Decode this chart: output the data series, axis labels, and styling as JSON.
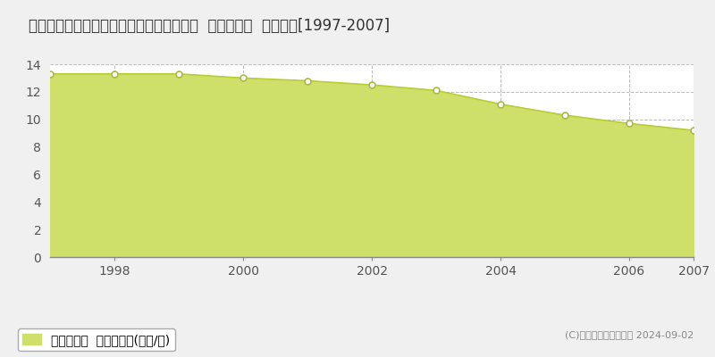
{
  "title": "徳島県鳴門市大麻町津慈字センドウ７４番  基準地価格  地価推移[1997-2007]",
  "years": [
    1997,
    1998,
    1999,
    2000,
    2001,
    2002,
    2003,
    2004,
    2005,
    2006,
    2007
  ],
  "values": [
    13.3,
    13.3,
    13.3,
    13.0,
    12.8,
    12.5,
    12.1,
    11.1,
    10.3,
    9.7,
    9.2
  ],
  "ylim": [
    0,
    14
  ],
  "yticks": [
    0,
    2,
    4,
    6,
    8,
    10,
    12,
    14
  ],
  "xlim_left": 1997,
  "xlim_right": 2007,
  "line_color": "#b8cc33",
  "fill_color": "#cfe06a",
  "marker_facecolor": "#ffffff",
  "marker_edgecolor": "#aabb44",
  "grid_color": "#bbbbbb",
  "bg_color": "#f0f0f0",
  "plot_bg_color": "#ffffff",
  "legend_label": "基準地価格  平均坪単価(万円/坪)",
  "copyright_text": "(C)土地価格ドットコム 2024-09-02",
  "title_fontsize": 12,
  "axis_fontsize": 10,
  "legend_fontsize": 10,
  "xticks": [
    1998,
    2000,
    2002,
    2004,
    2006,
    2007
  ]
}
